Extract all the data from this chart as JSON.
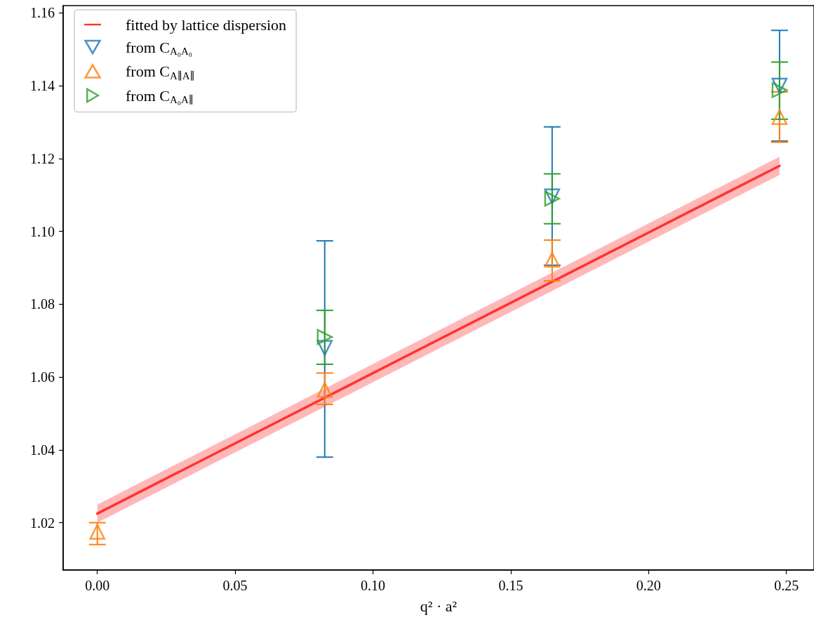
{
  "chart_data": {
    "type": "scatter",
    "xlabel": "q² · a²",
    "xlim": [
      -0.0124,
      0.26
    ],
    "xticks": [
      {
        "value": 0,
        "label": "0.00"
      },
      0.05,
      {
        "value": 0.1,
        "label": "0.10"
      },
      0.15,
      {
        "value": 0.2,
        "label": "0.20"
      },
      0.25
    ],
    "ylim": [
      1.007,
      1.162
    ],
    "yticks": [
      1.02,
      1.04,
      1.06,
      1.08,
      {
        "value": 1.1,
        "label": "1.10"
      },
      1.12,
      1.14,
      1.16
    ],
    "grid": false,
    "legend": "top left",
    "series": [
      {
        "name": "fitted by lattice dispersion",
        "type": "line",
        "color": "#ff3333",
        "marker": "none",
        "line_style": "solid",
        "x": [
          0,
          0.2475
        ],
        "values": [
          1.0225,
          1.118
        ],
        "lower": [
          1.02,
          1.1155
        ],
        "upper": [
          1.025,
          1.1205
        ]
      },
      {
        "name": "from C$_{A₀A₀}$",
        "color": "#1f77b4",
        "marker": "triangle",
        "x": [
          0.0825,
          0.165,
          0.2475
        ],
        "values": [
          1.068,
          1.1096,
          1.14
        ],
        "errors": [
          [
            1.038,
            1.0974
          ],
          [
            1.0907,
            1.1287
          ],
          [
            1.1248,
            1.1552
          ]
        ]
      },
      {
        "name": "from C$_{A∥A∥}$",
        "color": "#ff7f0e",
        "marker": "triangle",
        "x": [
          0,
          0.0825,
          0.165,
          0.2475
        ],
        "values": [
          1.0175,
          1.0565,
          1.0922,
          1.1314
        ],
        "errors": [
          [
            1.014,
            1.02
          ],
          [
            1.0525,
            1.0611
          ],
          [
            1.0864,
            1.0976
          ],
          [
            1.1245,
            1.1383
          ]
        ]
      },
      {
        "name": "from C$_{A₀A∥}$",
        "color": "#2ca02c",
        "marker": "triangle",
        "x": [
          0.0825,
          0.165,
          0.2475
        ],
        "values": [
          1.071,
          1.109,
          1.1388
        ],
        "errors": [
          [
            1.0635,
            1.0783
          ],
          [
            1.1021,
            1.1158
          ],
          [
            1.1308,
            1.1465
          ]
        ]
      }
    ]
  }
}
